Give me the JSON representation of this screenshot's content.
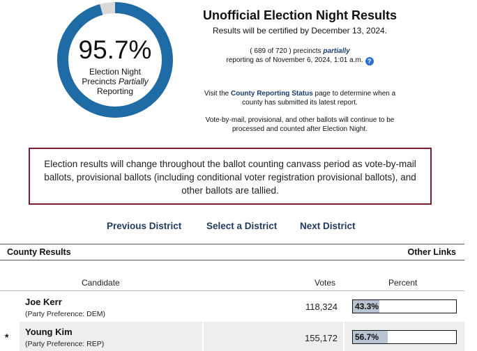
{
  "gauge": {
    "percent_text": "95.7%",
    "percent_value": 95.7,
    "label_line1": "Election Night",
    "label_line2_a": "Precincts ",
    "label_line2_b": "Partially",
    "label_line3": "Reporting",
    "ring_color": "#1f6ba5",
    "remainder_color": "#d9d9d9"
  },
  "header": {
    "title": "Unofficial Election Night Results",
    "certified": "Results will be certified by December 13, 2024.",
    "precincts_prefix": "( 689 of 720 ) precincts ",
    "precincts_partially": "partially",
    "reporting_as_of": "reporting as of November 6, 2024, 1:01 a.m.",
    "help_icon": "?",
    "visit_prefix": "Visit the ",
    "visit_link": "County Reporting Status",
    "visit_suffix": " page to determine when a",
    "visit_line2": "county has submitted its latest report.",
    "vbm_line1": "Vote-by-mail, provisional, and other ballots will continue to be",
    "vbm_line2": "processed and counted after Election Night."
  },
  "notice": {
    "text": "Election results will change throughout the ballot counting canvass period as vote-by-mail ballots, provisional ballots (including conditional voter registration provisional ballots), and other ballots are tallied.",
    "border_color": "#7a1f2b"
  },
  "nav": {
    "previous": "Previous District",
    "select": "Select a District",
    "next": "Next District"
  },
  "county_bar": {
    "left": "County Results",
    "right": "Other Links"
  },
  "table": {
    "headers": {
      "candidate": "Candidate",
      "votes": "Votes",
      "percent": "Percent"
    },
    "rows": [
      {
        "winner_mark": "",
        "name": "Joe Kerr",
        "party": "(Party Preference: DEM)",
        "votes": "118,324",
        "percent_text": "43.3%",
        "percent_value": 43.3
      },
      {
        "winner_mark": "*",
        "name": "Young Kim",
        "party": "(Party Preference: REP)",
        "votes": "155,172",
        "percent_text": "56.7%",
        "percent_value": 56.7
      }
    ]
  }
}
